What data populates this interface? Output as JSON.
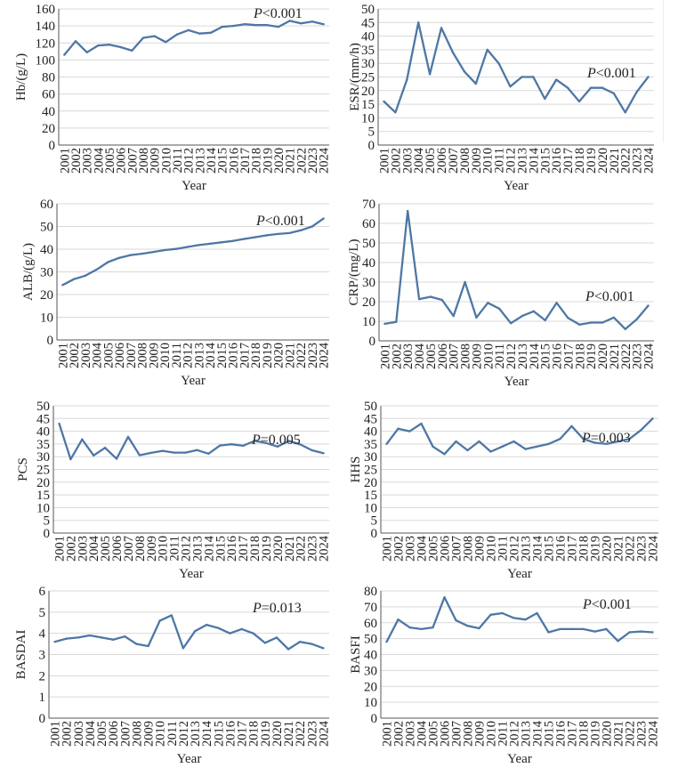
{
  "chart_data": [
    {
      "type": "line",
      "id": "hb",
      "title": "",
      "xlabel": "Year",
      "ylabel": "Hb/(g/L)",
      "ylim": [
        0,
        160
      ],
      "yticks": [
        0,
        20,
        40,
        60,
        80,
        100,
        120,
        140,
        160
      ],
      "grid": true,
      "annotation": {
        "p_letter": "P",
        "p_rest": "<0.001"
      },
      "x": [
        "2001",
        "2002",
        "2003",
        "2004",
        "2005",
        "2006",
        "2007",
        "2008",
        "2009",
        "2010",
        "2011",
        "2012",
        "2013",
        "2014",
        "2015",
        "2016",
        "2017",
        "2018",
        "2019",
        "2020",
        "2021",
        "2022",
        "2023",
        "2024"
      ],
      "values": [
        106,
        122,
        109,
        117,
        118,
        115,
        111,
        126,
        128,
        121,
        130,
        135,
        131,
        132,
        139,
        140,
        142,
        141,
        141,
        139,
        146,
        143,
        145,
        142
      ]
    },
    {
      "type": "line",
      "id": "esr",
      "title": "",
      "xlabel": "Year",
      "ylabel": "ESR/(mm/h)",
      "ylim": [
        0,
        50
      ],
      "yticks": [
        0,
        5,
        10,
        15,
        20,
        25,
        30,
        35,
        40,
        45,
        50
      ],
      "grid": true,
      "annotation": {
        "p_letter": "P",
        "p_rest": "<0.001"
      },
      "x": [
        "2001",
        "2002",
        "2003",
        "2004",
        "2005",
        "2006",
        "2007",
        "2008",
        "2009",
        "2010",
        "2011",
        "2012",
        "2013",
        "2014",
        "2015",
        "2016",
        "2017",
        "2018",
        "2019",
        "2020",
        "2021",
        "2022",
        "2023",
        "2024"
      ],
      "values": [
        16,
        12,
        24,
        45,
        26,
        43,
        34,
        27,
        22.5,
        35,
        30,
        21.5,
        25,
        25,
        17,
        24,
        21,
        16,
        21,
        21,
        19,
        12,
        19.5,
        25
      ]
    },
    {
      "type": "line",
      "id": "alb",
      "title": "",
      "xlabel": "Year",
      "ylabel": "ALB/(g/L)",
      "ylim": [
        0,
        60
      ],
      "yticks": [
        0,
        10,
        20,
        30,
        40,
        50,
        60
      ],
      "grid": true,
      "annotation": {
        "p_letter": "P",
        "p_rest": "<0.001"
      },
      "x": [
        "2001",
        "2002",
        "2003",
        "2004",
        "2005",
        "2006",
        "2007",
        "2008",
        "2009",
        "2010",
        "2011",
        "2012",
        "2013",
        "2014",
        "2015",
        "2016",
        "2017",
        "2018",
        "2019",
        "2020",
        "2021",
        "2022",
        "2023",
        "2024"
      ],
      "values": [
        24.2,
        26.8,
        28.3,
        31,
        34.3,
        36.2,
        37.4,
        38,
        38.8,
        39.6,
        40.1,
        41,
        41.8,
        42.4,
        43,
        43.6,
        44.5,
        45.3,
        46.1,
        46.7,
        47.1,
        48.3,
        50,
        53.5
      ]
    },
    {
      "type": "line",
      "id": "crp",
      "title": "",
      "xlabel": "Year",
      "ylabel": "CRP/(mg/L)",
      "ylim": [
        0,
        70
      ],
      "yticks": [
        0,
        10,
        20,
        30,
        40,
        50,
        60,
        70
      ],
      "grid": true,
      "annotation": {
        "p_letter": "P",
        "p_rest": "<0.001"
      },
      "x": [
        "2001",
        "2002",
        "2003",
        "2004",
        "2005",
        "2006",
        "2007",
        "2008",
        "2009",
        "2010",
        "2011",
        "2012",
        "2013",
        "2014",
        "2015",
        "2016",
        "2017",
        "2018",
        "2019",
        "2020",
        "2021",
        "2022",
        "2023",
        "2024"
      ],
      "values": [
        8.7,
        9.7,
        66.3,
        21.3,
        22.5,
        20.9,
        12.7,
        30,
        11.9,
        19.4,
        16.4,
        9,
        12.7,
        15.1,
        10.5,
        19.4,
        11.7,
        8.3,
        9.3,
        9.3,
        11.9,
        6,
        11,
        18
      ]
    },
    {
      "type": "line",
      "id": "pcs",
      "title": "",
      "xlabel": "Year",
      "ylabel": "PCS",
      "ylim": [
        0,
        50
      ],
      "yticks": [
        0,
        5,
        10,
        15,
        20,
        25,
        30,
        35,
        40,
        45,
        50
      ],
      "grid": true,
      "annotation": {
        "p_letter": "P",
        "p_rest": "=0.005"
      },
      "x": [
        "2001",
        "2002",
        "2003",
        "2004",
        "2005",
        "2006",
        "2007",
        "2008",
        "2009",
        "2010",
        "2011",
        "2012",
        "2013",
        "2014",
        "2015",
        "2016",
        "2017",
        "2018",
        "2019",
        "2020",
        "2021",
        "2022",
        "2023",
        "2024"
      ],
      "values": [
        43,
        29,
        36.8,
        30.5,
        33.5,
        29.2,
        37.8,
        30.6,
        31.5,
        32.3,
        31.6,
        31.6,
        32.6,
        31.2,
        34.4,
        34.9,
        34.3,
        36.2,
        35.4,
        34,
        36.2,
        34.8,
        32.5,
        31.4
      ]
    },
    {
      "type": "line",
      "id": "hhs",
      "title": "",
      "xlabel": "Year",
      "ylabel": "HHS",
      "ylim": [
        0,
        50
      ],
      "yticks": [
        0,
        5,
        10,
        15,
        20,
        25,
        30,
        35,
        40,
        45,
        50
      ],
      "grid": true,
      "annotation": {
        "p_letter": "P",
        "p_rest": "=0.003"
      },
      "x": [
        "2001",
        "2002",
        "2003",
        "2004",
        "2005",
        "2006",
        "2007",
        "2008",
        "2009",
        "2010",
        "2011",
        "2012",
        "2013",
        "2014",
        "2015",
        "2016",
        "2017",
        "2018",
        "2019",
        "2020",
        "2021",
        "2022",
        "2023",
        "2024"
      ],
      "values": [
        35,
        41,
        40,
        43,
        34,
        31,
        36,
        32.5,
        36,
        32,
        34,
        36,
        33,
        34,
        35,
        37,
        42,
        37,
        35.5,
        35,
        36,
        37,
        40.5,
        45
      ]
    },
    {
      "type": "line",
      "id": "basdai",
      "title": "",
      "xlabel": "Year",
      "ylabel": "BASDAI",
      "ylim": [
        0,
        6
      ],
      "yticks": [
        0,
        1,
        2,
        3,
        4,
        5,
        6
      ],
      "grid": true,
      "annotation": {
        "p_letter": "P",
        "p_rest": "=0.013"
      },
      "x": [
        "2001",
        "2002",
        "2003",
        "2004",
        "2005",
        "2006",
        "2007",
        "2008",
        "2009",
        "2010",
        "2011",
        "2012",
        "2013",
        "2014",
        "2015",
        "2016",
        "2017",
        "2018",
        "2019",
        "2020",
        "2021",
        "2022",
        "2023",
        "2024"
      ],
      "values": [
        3.6,
        3.75,
        3.8,
        3.9,
        3.8,
        3.7,
        3.85,
        3.5,
        3.4,
        4.6,
        4.85,
        3.3,
        4.1,
        4.4,
        4.25,
        4.0,
        4.2,
        4.0,
        3.55,
        3.8,
        3.25,
        3.6,
        3.5,
        3.3
      ]
    },
    {
      "type": "line",
      "id": "basfi",
      "title": "",
      "xlabel": "Year",
      "ylabel": "BASFI",
      "ylim": [
        0,
        80
      ],
      "yticks": [
        0,
        10,
        20,
        30,
        40,
        50,
        60,
        70,
        80
      ],
      "grid": true,
      "annotation": {
        "p_letter": "P",
        "p_rest": "<0.001"
      },
      "x": [
        "2001",
        "2002",
        "2003",
        "2004",
        "2005",
        "2006",
        "2007",
        "2008",
        "2009",
        "2010",
        "2011",
        "2012",
        "2013",
        "2014",
        "2015",
        "2016",
        "2017",
        "2018",
        "2019",
        "2020",
        "2021",
        "2022",
        "2023",
        "2024"
      ],
      "values": [
        48,
        62,
        57,
        56,
        57,
        76,
        61.5,
        58,
        56.5,
        65,
        66,
        63,
        62,
        66,
        54,
        56,
        56,
        56,
        54.5,
        56,
        48.5,
        54,
        54.5,
        54
      ]
    }
  ],
  "style": {
    "line_color": "#4e77a5",
    "grid_color": "#d9d9d9",
    "axis_color": "#555555",
    "text_color": "#222222"
  }
}
